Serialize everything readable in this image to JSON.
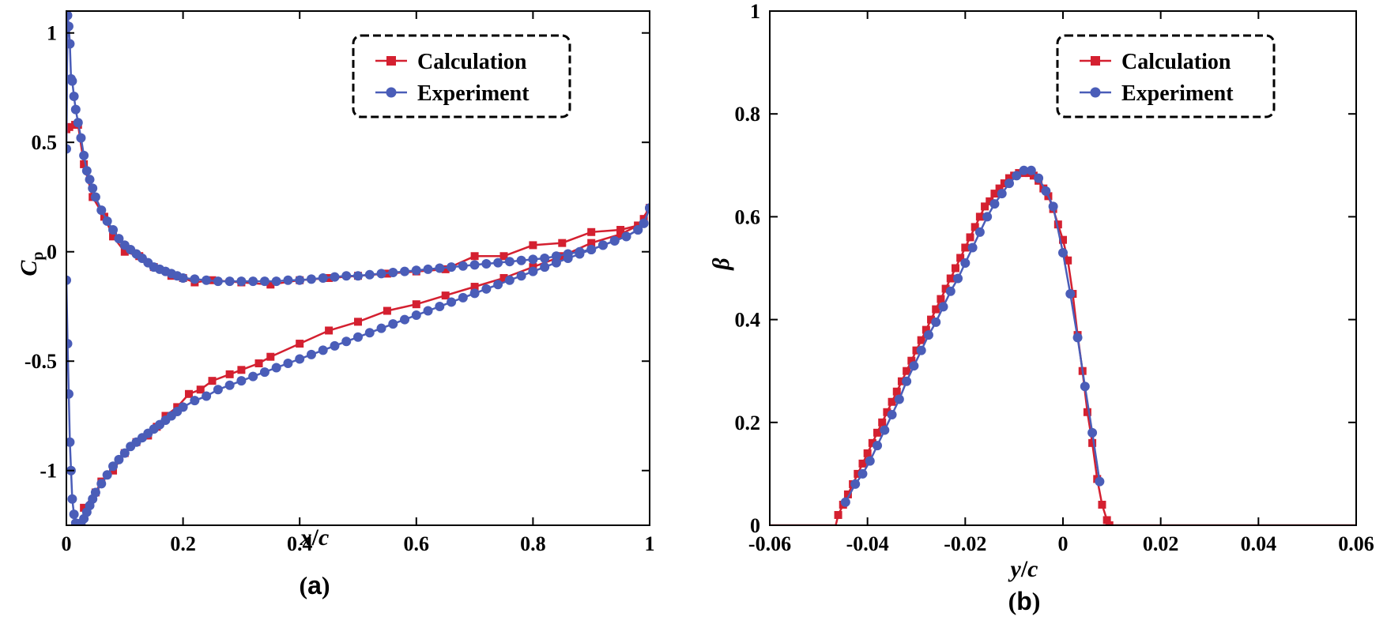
{
  "colors": {
    "calculation": "#d42030",
    "experiment": "#4a5db8",
    "axis": "#000000"
  },
  "chart_data": [
    {
      "id": "a",
      "type": "line",
      "caption": {
        "open": "(",
        "letter": "a",
        "close": ")"
      },
      "xlabel": {
        "var": "x",
        "slash": "/",
        "var2": "c"
      },
      "ylabel": {
        "main": "C",
        "sub": "p"
      },
      "xlim": [
        0,
        1
      ],
      "ylim": [
        -1.25,
        1.1
      ],
      "xticks": [
        0,
        0.2,
        0.4,
        0.6,
        0.8,
        1
      ],
      "xtick_labels": [
        "0",
        "0.2",
        "0.4",
        "0.6",
        "0.8",
        "1"
      ],
      "yticks": [
        -1,
        -0.5,
        0,
        0.5,
        1
      ],
      "ytick_labels": [
        "-1",
        "-0.5",
        "0",
        "0.5",
        "1"
      ],
      "legend": {
        "position": "top-right",
        "entries": [
          "Calculation",
          "Experiment"
        ]
      },
      "series": [
        {
          "name": "Calculation",
          "marker": "square",
          "x": [
            0.0,
            0.005,
            0.015,
            0.02,
            0.03,
            0.045,
            0.065,
            0.08,
            0.1,
            0.125,
            0.15,
            0.18,
            0.2,
            0.22,
            0.25,
            0.3,
            0.35,
            0.4,
            0.45,
            0.5,
            0.55,
            0.6,
            0.65,
            0.7,
            0.75,
            0.8,
            0.85,
            0.9,
            0.95,
            0.98,
            0.99,
            1.0
          ],
          "y": [
            0.56,
            0.57,
            0.58,
            0.58,
            0.4,
            0.25,
            0.16,
            0.07,
            0.0,
            -0.02,
            -0.07,
            -0.11,
            -0.12,
            -0.14,
            -0.13,
            -0.14,
            -0.15,
            -0.13,
            -0.12,
            -0.11,
            -0.1,
            -0.09,
            -0.08,
            -0.02,
            -0.02,
            0.03,
            0.04,
            0.09,
            0.1,
            0.12,
            0.15,
            0.2
          ]
        },
        {
          "name": "Calculation",
          "marker": "square",
          "x": [
            0.03,
            0.05,
            0.06,
            0.08,
            0.1,
            0.12,
            0.14,
            0.155,
            0.17,
            0.19,
            0.21,
            0.23,
            0.25,
            0.28,
            0.3,
            0.33,
            0.35,
            0.4,
            0.45,
            0.5,
            0.55,
            0.6,
            0.65,
            0.7,
            0.75,
            0.8,
            0.85,
            0.9,
            0.95,
            0.98,
            1.0
          ],
          "y": [
            -1.17,
            -1.1,
            -1.05,
            -1.0,
            -0.92,
            -0.87,
            -0.84,
            -0.8,
            -0.75,
            -0.71,
            -0.65,
            -0.63,
            -0.59,
            -0.56,
            -0.54,
            -0.51,
            -0.48,
            -0.42,
            -0.36,
            -0.32,
            -0.27,
            -0.24,
            -0.2,
            -0.16,
            -0.12,
            -0.07,
            -0.02,
            0.04,
            0.08,
            0.12,
            0.2
          ]
        },
        {
          "name": "Experiment",
          "marker": "circle",
          "x": [
            0.0,
            0.002,
            0.004,
            0.006,
            0.008,
            0.01,
            0.013,
            0.016,
            0.02,
            0.025,
            0.03,
            0.035,
            0.04,
            0.045,
            0.05,
            0.06,
            0.07,
            0.08,
            0.09,
            0.1,
            0.11,
            0.12,
            0.13,
            0.14,
            0.15,
            0.16,
            0.17,
            0.18,
            0.19,
            0.2,
            0.22,
            0.24,
            0.26,
            0.28,
            0.3,
            0.32,
            0.34,
            0.36,
            0.38,
            0.4,
            0.42,
            0.44,
            0.46,
            0.48,
            0.5,
            0.52,
            0.54,
            0.56,
            0.58,
            0.6,
            0.62,
            0.64,
            0.66,
            0.68,
            0.7,
            0.72,
            0.74,
            0.76,
            0.78,
            0.8,
            0.82,
            0.84,
            0.86,
            0.88,
            0.9,
            0.92,
            0.94,
            0.96,
            0.98,
            0.99,
            1.0
          ],
          "y": [
            0.47,
            1.08,
            1.03,
            0.95,
            0.79,
            0.78,
            0.71,
            0.65,
            0.59,
            0.52,
            0.44,
            0.37,
            0.33,
            0.29,
            0.25,
            0.19,
            0.14,
            0.1,
            0.06,
            0.03,
            0.01,
            -0.01,
            -0.03,
            -0.05,
            -0.07,
            -0.08,
            -0.09,
            -0.1,
            -0.11,
            -0.12,
            -0.125,
            -0.13,
            -0.135,
            -0.135,
            -0.135,
            -0.135,
            -0.135,
            -0.135,
            -0.13,
            -0.13,
            -0.125,
            -0.12,
            -0.115,
            -0.11,
            -0.11,
            -0.105,
            -0.1,
            -0.095,
            -0.09,
            -0.085,
            -0.08,
            -0.075,
            -0.07,
            -0.065,
            -0.06,
            -0.055,
            -0.05,
            -0.045,
            -0.04,
            -0.035,
            -0.03,
            -0.02,
            -0.01,
            0.0,
            0.01,
            0.03,
            0.05,
            0.07,
            0.1,
            0.13,
            0.2
          ]
        },
        {
          "name": "Experiment",
          "marker": "circle",
          "x": [
            0.0,
            0.002,
            0.004,
            0.006,
            0.008,
            0.01,
            0.013,
            0.016,
            0.02,
            0.025,
            0.03,
            0.035,
            0.04,
            0.045,
            0.05,
            0.06,
            0.07,
            0.08,
            0.09,
            0.1,
            0.11,
            0.12,
            0.13,
            0.14,
            0.15,
            0.16,
            0.17,
            0.18,
            0.19,
            0.2,
            0.22,
            0.24,
            0.26,
            0.28,
            0.3,
            0.32,
            0.34,
            0.36,
            0.38,
            0.4,
            0.42,
            0.44,
            0.46,
            0.48,
            0.5,
            0.52,
            0.54,
            0.56,
            0.58,
            0.6,
            0.62,
            0.64,
            0.66,
            0.68,
            0.7,
            0.72,
            0.74,
            0.76,
            0.78,
            0.8,
            0.82,
            0.84,
            0.86,
            0.88,
            0.9,
            0.92,
            0.94,
            0.96,
            0.98,
            0.99,
            1.0
          ],
          "y": [
            -0.13,
            -0.42,
            -0.65,
            -0.87,
            -1.0,
            -1.13,
            -1.2,
            -1.24,
            -1.25,
            -1.24,
            -1.22,
            -1.19,
            -1.16,
            -1.13,
            -1.1,
            -1.06,
            -1.02,
            -0.98,
            -0.95,
            -0.92,
            -0.89,
            -0.87,
            -0.85,
            -0.83,
            -0.81,
            -0.79,
            -0.77,
            -0.75,
            -0.73,
            -0.71,
            -0.68,
            -0.66,
            -0.63,
            -0.61,
            -0.59,
            -0.57,
            -0.55,
            -0.53,
            -0.51,
            -0.49,
            -0.47,
            -0.45,
            -0.43,
            -0.41,
            -0.39,
            -0.37,
            -0.35,
            -0.33,
            -0.31,
            -0.29,
            -0.27,
            -0.25,
            -0.23,
            -0.21,
            -0.19,
            -0.17,
            -0.15,
            -0.13,
            -0.11,
            -0.09,
            -0.07,
            -0.05,
            -0.03,
            -0.01,
            0.01,
            0.03,
            0.05,
            0.07,
            0.1,
            0.13,
            0.2
          ]
        }
      ]
    },
    {
      "id": "b",
      "type": "line",
      "caption": {
        "open": "(",
        "letter": "b",
        "close": ")"
      },
      "xlabel": {
        "var": "y",
        "slash": "/",
        "var2": "c"
      },
      "ylabel": {
        "main": "β",
        "sub": ""
      },
      "xlim": [
        -0.06,
        0.06
      ],
      "ylim": [
        0,
        1
      ],
      "xticks": [
        -0.06,
        -0.04,
        -0.02,
        0,
        0.02,
        0.04,
        0.06
      ],
      "xtick_labels": [
        "-0.06",
        "-0.04",
        "-0.02",
        "0",
        "0.02",
        "0.04",
        "0.06"
      ],
      "yticks": [
        0,
        0.2,
        0.4,
        0.6,
        0.8,
        1
      ],
      "ytick_labels": [
        "0",
        "0.2",
        "0.4",
        "0.6",
        "0.8",
        "1"
      ],
      "legend": {
        "position": "top-right",
        "entries": [
          "Calculation",
          "Experiment"
        ]
      },
      "series": [
        {
          "name": "Calculation",
          "marker": "square",
          "marker_range": [
            -0.046,
            0.01
          ],
          "x": [
            -0.06,
            -0.0465,
            -0.046,
            -0.045,
            -0.044,
            -0.043,
            -0.042,
            -0.041,
            -0.04,
            -0.039,
            -0.038,
            -0.037,
            -0.036,
            -0.035,
            -0.034,
            -0.033,
            -0.032,
            -0.031,
            -0.03,
            -0.029,
            -0.028,
            -0.027,
            -0.026,
            -0.025,
            -0.024,
            -0.023,
            -0.022,
            -0.021,
            -0.02,
            -0.019,
            -0.018,
            -0.017,
            -0.016,
            -0.015,
            -0.014,
            -0.013,
            -0.012,
            -0.011,
            -0.01,
            -0.009,
            -0.008,
            -0.007,
            -0.006,
            -0.005,
            -0.004,
            -0.003,
            -0.002,
            -0.001,
            0.0,
            0.001,
            0.002,
            0.003,
            0.004,
            0.005,
            0.006,
            0.007,
            0.008,
            0.009,
            0.0095,
            0.06
          ],
          "y": [
            0.0,
            0.0,
            0.02,
            0.04,
            0.06,
            0.08,
            0.1,
            0.12,
            0.14,
            0.16,
            0.18,
            0.2,
            0.22,
            0.24,
            0.26,
            0.28,
            0.3,
            0.32,
            0.34,
            0.36,
            0.38,
            0.4,
            0.42,
            0.44,
            0.46,
            0.48,
            0.5,
            0.52,
            0.54,
            0.56,
            0.58,
            0.6,
            0.62,
            0.63,
            0.645,
            0.655,
            0.665,
            0.675,
            0.68,
            0.685,
            0.685,
            0.685,
            0.68,
            0.67,
            0.655,
            0.64,
            0.615,
            0.585,
            0.555,
            0.515,
            0.45,
            0.37,
            0.3,
            0.22,
            0.16,
            0.09,
            0.04,
            0.01,
            0.0,
            0.0
          ]
        },
        {
          "name": "Experiment",
          "marker": "circle",
          "x": [
            -0.0445,
            -0.0425,
            -0.041,
            -0.0395,
            -0.038,
            -0.0365,
            -0.035,
            -0.0335,
            -0.032,
            -0.0305,
            -0.029,
            -0.0275,
            -0.026,
            -0.0245,
            -0.023,
            -0.0215,
            -0.02,
            -0.0185,
            -0.017,
            -0.0155,
            -0.014,
            -0.0125,
            -0.011,
            -0.0095,
            -0.008,
            -0.0065,
            -0.005,
            -0.0035,
            -0.002,
            0.0,
            0.0015,
            0.003,
            0.0045,
            0.006,
            0.0075
          ],
          "y": [
            0.045,
            0.08,
            0.1,
            0.125,
            0.155,
            0.185,
            0.215,
            0.245,
            0.28,
            0.31,
            0.34,
            0.37,
            0.395,
            0.425,
            0.455,
            0.48,
            0.51,
            0.54,
            0.57,
            0.6,
            0.625,
            0.645,
            0.665,
            0.68,
            0.69,
            0.69,
            0.675,
            0.65,
            0.62,
            0.53,
            0.45,
            0.365,
            0.27,
            0.18,
            0.085
          ]
        }
      ]
    }
  ]
}
